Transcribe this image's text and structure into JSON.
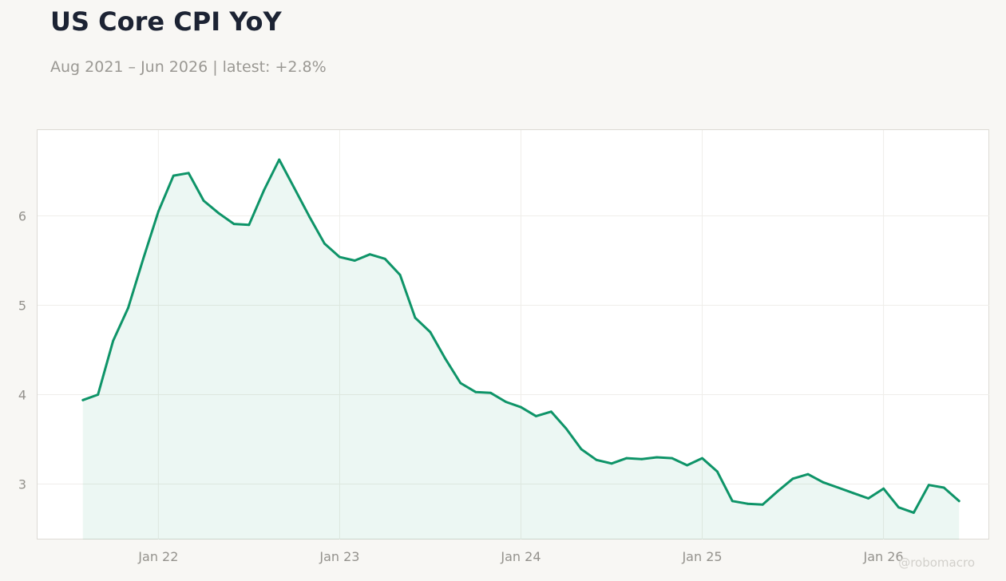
{
  "header": {
    "title": "US Core CPI YoY",
    "subtitle": "Aug 2021 – Jun 2026 | latest: +2.8%"
  },
  "watermark": "@robomacro",
  "colors": {
    "line": "#0e9468",
    "fill": "#0e9468",
    "background": "#f8f7f4",
    "plot_background": "#ffffff"
  },
  "chart_data": {
    "type": "area",
    "title": "US Core CPI YoY",
    "subtitle": "Aug 2021 – Jun 2026 | latest: +2.8%",
    "xlabel": "",
    "ylabel": "",
    "grid": true,
    "legend": "none",
    "xlim": [
      "2021-05",
      "2026-08"
    ],
    "ylim": [
      2.38,
      6.96
    ],
    "x_ticks": [
      {
        "x": "2022-01",
        "label": "Jan 22"
      },
      {
        "x": "2023-01",
        "label": "Jan 23"
      },
      {
        "x": "2024-01",
        "label": "Jan 24"
      },
      {
        "x": "2025-01",
        "label": "Jan 25"
      },
      {
        "x": "2026-01",
        "label": "Jan 26"
      }
    ],
    "y_ticks": [
      3,
      4,
      5,
      6
    ],
    "series": [
      {
        "x": [
          "2021-08",
          "2021-09",
          "2021-10",
          "2021-11",
          "2021-12",
          "2022-01",
          "2022-02",
          "2022-03",
          "2022-04",
          "2022-05",
          "2022-06",
          "2022-07",
          "2022-08",
          "2022-09",
          "2022-10",
          "2022-11",
          "2022-12",
          "2023-01",
          "2023-02",
          "2023-03",
          "2023-04",
          "2023-05",
          "2023-06",
          "2023-07",
          "2023-08",
          "2023-09",
          "2023-10",
          "2023-11",
          "2023-12",
          "2024-01",
          "2024-02",
          "2024-03",
          "2024-04",
          "2024-05",
          "2024-06",
          "2024-07",
          "2024-08",
          "2024-09",
          "2024-10",
          "2024-11",
          "2024-12",
          "2025-01",
          "2025-02",
          "2025-03",
          "2025-04",
          "2025-05",
          "2025-06",
          "2025-07",
          "2025-08",
          "2025-09",
          "2025-10",
          "2025-11",
          "2025-12",
          "2026-01",
          "2026-02",
          "2026-03",
          "2026-04",
          "2026-05",
          "2026-06"
        ],
        "values": [
          3.94,
          4.0,
          4.6,
          4.97,
          5.52,
          6.05,
          6.45,
          6.48,
          6.17,
          6.03,
          5.91,
          5.9,
          6.29,
          6.63,
          6.31,
          5.99,
          5.69,
          5.54,
          5.5,
          5.57,
          5.52,
          5.34,
          4.86,
          4.7,
          4.4,
          4.13,
          4.03,
          4.02,
          3.92,
          3.86,
          3.76,
          3.81,
          3.62,
          3.39,
          3.27,
          3.23,
          3.29,
          3.28,
          3.3,
          3.29,
          3.21,
          3.29,
          3.14,
          2.81,
          2.78,
          2.77,
          2.92,
          3.06,
          3.11,
          3.02,
          2.96,
          2.9,
          2.84,
          2.95,
          2.74,
          2.68,
          2.99,
          2.96,
          2.81
        ]
      }
    ]
  }
}
